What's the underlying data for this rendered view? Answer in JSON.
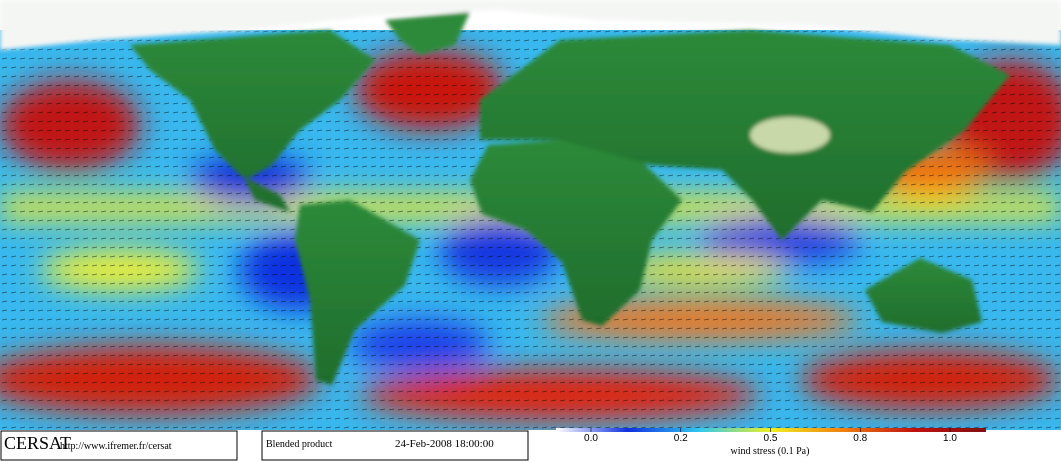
{
  "footer": {
    "logo": "CERSAT",
    "url": "http://www.ifremer.fr/cersat",
    "product": "Blended product",
    "timestamp": "24-Feb-2008 18:00:00"
  },
  "colorbar": {
    "lim": [
      0,
      1
    ],
    "ticks": [
      {
        "value": 0,
        "label": "0.0"
      },
      0.2,
      0.5,
      0.8,
      {
        "value": 1,
        "label": "1.0"
      }
    ],
    "label": "wind stress (0.1 Pa)",
    "colors": [
      "#ffffff",
      "#1030e0",
      "#30c8f0",
      "#f0f020",
      "#f08010",
      "#c01010",
      "#801010"
    ]
  }
}
